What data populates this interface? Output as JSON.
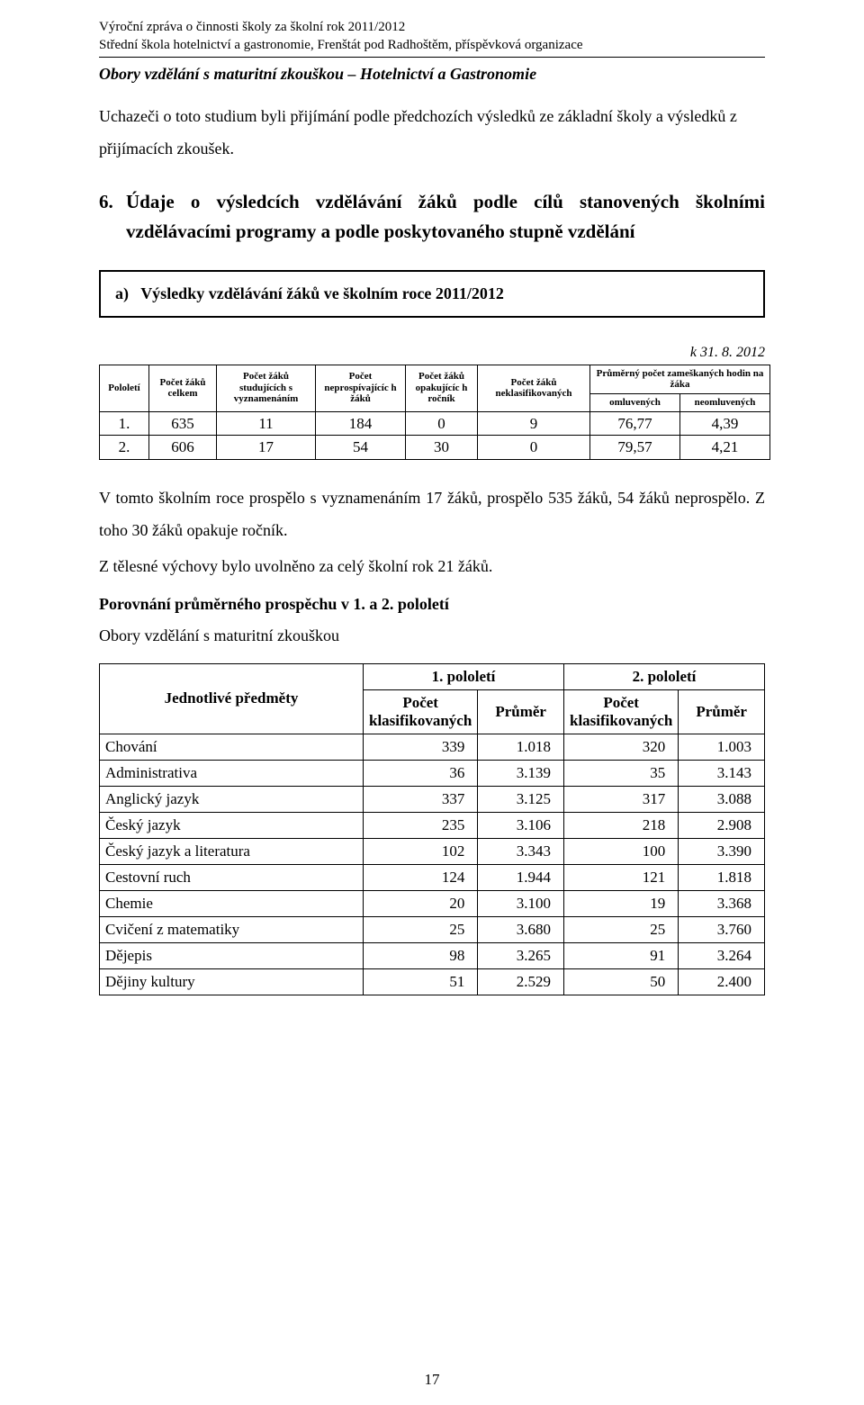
{
  "header": {
    "line1": "Výroční zpráva o činnosti školy za školní rok 2011/2012",
    "line2": "Střední škola hotelnictví a gastronomie, Frenštát pod Radhoštěm, příspěvková organizace"
  },
  "section_title": "Obory vzdělání s maturitní zkouškou – Hotelnictví a Gastronomie",
  "intro": "Uchazeči o toto studium byli přijímání podle předchozích výsledků ze základní školy a výsledků z přijímacích zkoušek.",
  "h6": {
    "num": "6.",
    "text": "Údaje o výsledcích vzdělávání žáků podle cílů stanovených školními vzdělávacími programy a podle poskytovaného stupně vzdělání"
  },
  "box_a": {
    "sub": "a)",
    "text": "Výsledky vzdělávání žáků ve školním roce 2011/2012"
  },
  "date_line": "k 31. 8. 2012",
  "t1": {
    "headers": {
      "c0": "Pololetí",
      "c1": "Počet žáků celkem",
      "c2": "Počet žáků studujících s vyznamenáním",
      "c3": "Počet neprospívajícíc h žáků",
      "c4": "Počet žáků opakujícíc h ročník",
      "c5": "Počet žáků neklasifikovaných",
      "c6_top": "Průměrný počet zameškaných hodin na žáka",
      "c6a": "omluvených",
      "c6b": "neomluvených"
    },
    "rows": [
      {
        "p": "1.",
        "a": "635",
        "b": "11",
        "c": "184",
        "d": "0",
        "e": "9",
        "f": "76,77",
        "g": "4,39"
      },
      {
        "p": "2.",
        "a": "606",
        "b": "17",
        "c": "54",
        "d": "30",
        "e": "0",
        "f": "79,57",
        "g": "4,21"
      }
    ],
    "col_widths": [
      "55",
      "75",
      "110",
      "100",
      "80",
      "125",
      "100",
      "100"
    ]
  },
  "para1": "V tomto školním roce prospělo s vyznamenáním 17 žáků, prospělo 535 žáků, 54 žáků neprospělo. Z toho 30 žáků opakuje ročník.",
  "para2": "Z tělesné výchovy bylo uvolněno za celý školní rok 21 žáků.",
  "bold_line": "Porovnání průměrného prospěchu v 1. a 2. pololetí",
  "plain_line": "Obory vzdělání s maturitní zkouškou",
  "t2": {
    "headers": {
      "subj": "Jednotlivé předměty",
      "p1": "1. pololetí",
      "p2": "2. pololetí",
      "pk": "Počet klasifikovaných",
      "pr": "Průměr"
    },
    "rows": [
      {
        "s": "Chování",
        "n1": "339",
        "a1": "1.018",
        "n2": "320",
        "a2": "1.003"
      },
      {
        "s": "Administrativa",
        "n1": "36",
        "a1": "3.139",
        "n2": "35",
        "a2": "3.143"
      },
      {
        "s": "Anglický jazyk",
        "n1": "337",
        "a1": "3.125",
        "n2": "317",
        "a2": "3.088"
      },
      {
        "s": "Český jazyk",
        "n1": "235",
        "a1": "3.106",
        "n2": "218",
        "a2": "2.908"
      },
      {
        "s": "Český jazyk a literatura",
        "n1": "102",
        "a1": "3.343",
        "n2": "100",
        "a2": "3.390"
      },
      {
        "s": "Cestovní ruch",
        "n1": "124",
        "a1": "1.944",
        "n2": "121",
        "a2": "1.818"
      },
      {
        "s": "Chemie",
        "n1": "20",
        "a1": "3.100",
        "n2": "19",
        "a2": "3.368"
      },
      {
        "s": "Cvičení z matematiky",
        "n1": "25",
        "a1": "3.680",
        "n2": "25",
        "a2": "3.760"
      },
      {
        "s": "Dějepis",
        "n1": "98",
        "a1": "3.265",
        "n2": "91",
        "a2": "3.264"
      },
      {
        "s": "Dějiny kultury",
        "n1": "51",
        "a1": "2.529",
        "n2": "50",
        "a2": "2.400"
      }
    ]
  },
  "page_number": "17"
}
